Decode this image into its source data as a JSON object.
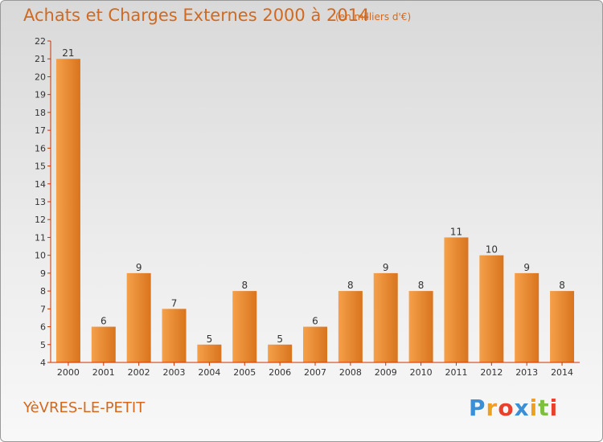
{
  "header": {
    "title": "Achats et Charges Externes 2000 à 2014",
    "subtitle": "(en milliers d'€)"
  },
  "footer": {
    "commune": "YèVRES-LE-PETIT",
    "logo_letters": [
      "P",
      "r",
      "o",
      "x",
      "i",
      "t",
      "i"
    ],
    "logo_colors": [
      "#3a8fd6",
      "#f0a020",
      "#e8402a",
      "#3a8fd6",
      "#f0a020",
      "#7fbf3f",
      "#e8402a"
    ]
  },
  "colors": {
    "bar_light": "#f5a04a",
    "bar_dark": "#d9741e",
    "axis": "#cc3300",
    "text": "#d2691e"
  },
  "chart_data": {
    "type": "bar",
    "title": "Achats et Charges Externes 2000 à 2014",
    "subtitle": "(en milliers d'€)",
    "categories": [
      "2000",
      "2001",
      "2002",
      "2003",
      "2004",
      "2005",
      "2006",
      "2007",
      "2008",
      "2009",
      "2010",
      "2011",
      "2012",
      "2013",
      "2014"
    ],
    "values": [
      21,
      6,
      9,
      7,
      5,
      8,
      5,
      6,
      8,
      9,
      8,
      11,
      10,
      9,
      8
    ],
    "ylim": [
      4,
      22
    ],
    "yticks": [
      4,
      5,
      6,
      7,
      8,
      9,
      10,
      11,
      12,
      13,
      14,
      15,
      16,
      17,
      18,
      19,
      20,
      21,
      22
    ],
    "grid": false,
    "legend": "none"
  }
}
